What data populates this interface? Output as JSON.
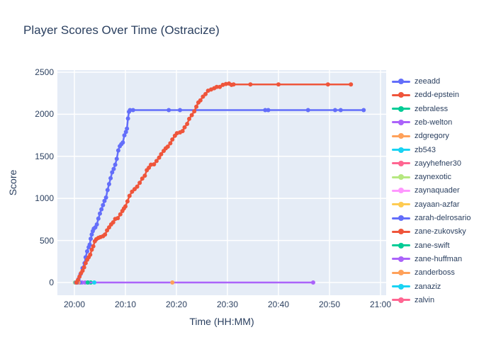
{
  "chart": {
    "title": "Player Scores Over Time (Ostracize)",
    "xlabel": "Time (HH:MM)",
    "ylabel": "Score"
  },
  "chart_data": {
    "type": "line",
    "title": "Player Scores Over Time (Ostracize)",
    "xlabel": "Time (HH:MM)",
    "ylabel": "Score",
    "x_unit": "minutes after 20:00",
    "xlim": [
      -3.5,
      61
    ],
    "ylim": [
      0,
      2500
    ],
    "grid": true,
    "legend_position": "right",
    "plot_bg": "#e5ecf6",
    "grid_color": "#ffffff",
    "text_color": "#2a3f5f",
    "xticks": [
      {
        "m": 0,
        "label": "20:00"
      },
      {
        "m": 10,
        "label": "20:10"
      },
      {
        "m": 20,
        "label": "20:20"
      },
      {
        "m": 30,
        "label": "20:30"
      },
      {
        "m": 40,
        "label": "20:40"
      },
      {
        "m": 50,
        "label": "20:50"
      },
      {
        "m": 60,
        "label": "21:00"
      }
    ],
    "yticks": [
      {
        "v": 0,
        "label": "0"
      },
      {
        "v": 500,
        "label": "500"
      },
      {
        "v": 1000,
        "label": "1000"
      },
      {
        "v": 1500,
        "label": "1500"
      },
      {
        "v": 2000,
        "label": "2000"
      },
      {
        "v": 2500,
        "label": "2500"
      }
    ],
    "series": [
      {
        "name": "zeeadd",
        "color": "#636efa",
        "points": [
          [
            0.5,
            0
          ],
          [
            0.8,
            40
          ],
          [
            1.2,
            100
          ],
          [
            1.6,
            170
          ],
          [
            2.0,
            230
          ],
          [
            2.2,
            300
          ],
          [
            2.5,
            370
          ],
          [
            2.8,
            420
          ],
          [
            3.0,
            450
          ],
          [
            3.2,
            520
          ],
          [
            3.4,
            570
          ],
          [
            3.6,
            610
          ],
          [
            3.8,
            640
          ],
          [
            4.1,
            655
          ],
          [
            4.4,
            690
          ],
          [
            4.7,
            760
          ],
          [
            5.0,
            820
          ],
          [
            5.3,
            870
          ],
          [
            5.6,
            920
          ],
          [
            5.9,
            970
          ],
          [
            6.2,
            1010
          ],
          [
            6.5,
            1100
          ],
          [
            6.8,
            1170
          ],
          [
            7.1,
            1240
          ],
          [
            7.4,
            1310
          ],
          [
            7.7,
            1350
          ],
          [
            8.0,
            1400
          ],
          [
            8.3,
            1470
          ],
          [
            8.6,
            1570
          ],
          [
            8.9,
            1620
          ],
          [
            9.2,
            1645
          ],
          [
            9.5,
            1665
          ],
          [
            9.8,
            1750
          ],
          [
            10.1,
            1790
          ],
          [
            10.3,
            1830
          ],
          [
            10.5,
            1950
          ],
          [
            10.7,
            2030
          ],
          [
            10.9,
            2050
          ],
          [
            11.5,
            2050
          ],
          [
            18.5,
            2050
          ],
          [
            20.7,
            2050
          ],
          [
            37.4,
            2050
          ],
          [
            38.0,
            2050
          ],
          [
            45.8,
            2050
          ],
          [
            51.1,
            2050
          ],
          [
            52.2,
            2050
          ],
          [
            56.7,
            2050
          ]
        ]
      },
      {
        "name": "zedd-epstein",
        "color": "#ef553b",
        "points": [
          [
            0.4,
            0
          ],
          [
            0.7,
            30
          ],
          [
            1.0,
            70
          ],
          [
            1.3,
            110
          ],
          [
            1.6,
            140
          ],
          [
            1.9,
            180
          ],
          [
            2.2,
            230
          ],
          [
            2.5,
            270
          ],
          [
            2.8,
            300
          ],
          [
            3.1,
            330
          ],
          [
            3.4,
            390
          ],
          [
            3.7,
            430
          ],
          [
            4.0,
            490
          ],
          [
            4.3,
            515
          ],
          [
            4.7,
            530
          ],
          [
            5.1,
            540
          ],
          [
            5.6,
            550
          ],
          [
            6.0,
            570
          ],
          [
            6.4,
            620
          ],
          [
            6.8,
            655
          ],
          [
            7.2,
            690
          ],
          [
            7.6,
            715
          ],
          [
            8.0,
            755
          ],
          [
            8.5,
            765
          ],
          [
            9.0,
            810
          ],
          [
            9.4,
            850
          ],
          [
            9.7,
            880
          ],
          [
            10.0,
            905
          ],
          [
            10.4,
            965
          ],
          [
            10.8,
            1030
          ],
          [
            11.3,
            1080
          ],
          [
            11.8,
            1110
          ],
          [
            12.3,
            1140
          ],
          [
            12.8,
            1185
          ],
          [
            13.3,
            1235
          ],
          [
            13.8,
            1270
          ],
          [
            14.2,
            1335
          ],
          [
            14.6,
            1365
          ],
          [
            15.0,
            1400
          ],
          [
            15.6,
            1405
          ],
          [
            16.1,
            1445
          ],
          [
            16.6,
            1485
          ],
          [
            17.0,
            1525
          ],
          [
            17.5,
            1565
          ],
          [
            17.9,
            1595
          ],
          [
            18.3,
            1615
          ],
          [
            18.8,
            1655
          ],
          [
            19.2,
            1700
          ],
          [
            19.7,
            1745
          ],
          [
            20.1,
            1775
          ],
          [
            20.7,
            1785
          ],
          [
            21.2,
            1800
          ],
          [
            21.6,
            1845
          ],
          [
            22.1,
            1885
          ],
          [
            22.5,
            1945
          ],
          [
            23.0,
            1990
          ],
          [
            23.5,
            2035
          ],
          [
            23.9,
            2090
          ],
          [
            24.3,
            2140
          ],
          [
            24.7,
            2165
          ],
          [
            25.2,
            2210
          ],
          [
            25.7,
            2240
          ],
          [
            26.2,
            2280
          ],
          [
            26.8,
            2295
          ],
          [
            27.4,
            2310
          ],
          [
            27.9,
            2325
          ],
          [
            28.5,
            2325
          ],
          [
            29.1,
            2350
          ],
          [
            29.7,
            2360
          ],
          [
            30.3,
            2365
          ],
          [
            30.8,
            2350
          ],
          [
            31.2,
            2355
          ],
          [
            34.5,
            2355
          ],
          [
            40.0,
            2355
          ],
          [
            49.7,
            2355
          ],
          [
            54.2,
            2355
          ]
        ]
      },
      {
        "name": "zebraless",
        "color": "#00cc96",
        "points": [
          [
            3.2,
            0
          ]
        ]
      },
      {
        "name": "zeb-welton",
        "color": "#ab63fa",
        "points": [
          [
            0.9,
            0
          ],
          [
            1.5,
            0
          ],
          [
            2.1,
            0
          ],
          [
            2.7,
            0
          ],
          [
            46.8,
            0
          ]
        ]
      },
      {
        "name": "zdgregory",
        "color": "#ffa15a",
        "points": [
          [
            19.2,
            0
          ]
        ]
      },
      {
        "name": "zb543",
        "color": "#19d3f3",
        "points": [
          [
            3.9,
            0
          ]
        ]
      },
      {
        "name": "zayyhefner30",
        "color": "#ff6692",
        "points": [
          [
            0.3,
            0
          ]
        ]
      },
      {
        "name": "zaynexotic",
        "color": "#b6e880",
        "points": [
          [
            0.4,
            0
          ]
        ]
      },
      {
        "name": "zaynaquader",
        "color": "#ff97ff",
        "points": [
          [
            0.5,
            0
          ]
        ]
      },
      {
        "name": "zayaan-azfar",
        "color": "#fecb52",
        "points": [
          [
            0.1,
            0
          ]
        ]
      },
      {
        "name": "zarah-delrosario",
        "color": "#636efa",
        "points": [
          [
            1.1,
            0
          ]
        ]
      },
      {
        "name": "zane-zukovsky",
        "color": "#ef553b",
        "points": [
          [
            0.6,
            0
          ]
        ]
      },
      {
        "name": "zane-swift",
        "color": "#00cc96",
        "points": [
          [
            2.6,
            0
          ]
        ]
      },
      {
        "name": "zane-huffman",
        "color": "#ab63fa",
        "points": [
          [
            0.7,
            0
          ]
        ]
      },
      {
        "name": "zanderboss",
        "color": "#ffa15a",
        "points": [
          [
            0.8,
            0
          ]
        ]
      },
      {
        "name": "zanaziz",
        "color": "#19d3f3",
        "points": [
          [
            0.2,
            0
          ]
        ]
      },
      {
        "name": "zalvin",
        "color": "#ff6692",
        "points": [
          [
            0.35,
            0
          ]
        ]
      }
    ]
  }
}
